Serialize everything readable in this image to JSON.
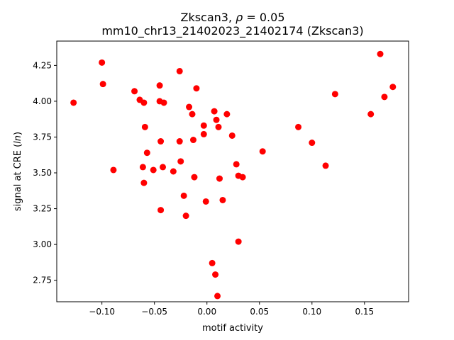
{
  "chart_data": {
    "type": "scatter",
    "title": {
      "line1_prefix": "Zkscan3, ",
      "rho_symbol": "ρ",
      "line1_suffix": " = 0.05",
      "line2": "mm10_chr13_21402023_21402174 (Zkscan3)"
    },
    "xlabel": "motif activity",
    "ylabel": {
      "prefix": "signal at CRE (",
      "italic": "ln",
      "suffix": ")"
    },
    "xlim": [
      -0.143,
      0.192
    ],
    "ylim": [
      2.6,
      4.42
    ],
    "xticks": [
      -0.1,
      -0.05,
      0.0,
      0.05,
      0.1,
      0.15
    ],
    "xtick_labels": [
      "−0.10",
      "−0.05",
      "0.00",
      "0.05",
      "0.10",
      "0.15"
    ],
    "yticks": [
      2.75,
      3.0,
      3.25,
      3.5,
      3.75,
      4.0,
      4.25
    ],
    "ytick_labels": [
      "2.75",
      "3.00",
      "3.25",
      "3.50",
      "3.75",
      "4.00",
      "4.25"
    ],
    "point_color": "#ff0000",
    "grid": false,
    "points": [
      {
        "x": -0.127,
        "y": 3.99
      },
      {
        "x": -0.1,
        "y": 4.27
      },
      {
        "x": -0.099,
        "y": 4.12
      },
      {
        "x": -0.089,
        "y": 3.52
      },
      {
        "x": -0.069,
        "y": 4.07
      },
      {
        "x": -0.064,
        "y": 4.01
      },
      {
        "x": -0.06,
        "y": 3.99
      },
      {
        "x": -0.059,
        "y": 3.82
      },
      {
        "x": -0.061,
        "y": 3.54
      },
      {
        "x": -0.06,
        "y": 3.43
      },
      {
        "x": -0.057,
        "y": 3.64
      },
      {
        "x": -0.051,
        "y": 3.52
      },
      {
        "x": -0.045,
        "y": 4.11
      },
      {
        "x": -0.045,
        "y": 4.0
      },
      {
        "x": -0.044,
        "y": 3.72
      },
      {
        "x": -0.042,
        "y": 3.54
      },
      {
        "x": -0.041,
        "y": 3.99
      },
      {
        "x": -0.044,
        "y": 3.24
      },
      {
        "x": -0.032,
        "y": 3.51
      },
      {
        "x": -0.026,
        "y": 4.21
      },
      {
        "x": -0.026,
        "y": 3.72
      },
      {
        "x": -0.025,
        "y": 3.58
      },
      {
        "x": -0.022,
        "y": 3.34
      },
      {
        "x": -0.02,
        "y": 3.2
      },
      {
        "x": -0.017,
        "y": 3.96
      },
      {
        "x": -0.014,
        "y": 3.91
      },
      {
        "x": -0.013,
        "y": 3.73
      },
      {
        "x": -0.012,
        "y": 3.47
      },
      {
        "x": -0.01,
        "y": 4.09
      },
      {
        "x": -0.003,
        "y": 3.83
      },
      {
        "x": -0.003,
        "y": 3.77
      },
      {
        "x": -0.001,
        "y": 3.3
      },
      {
        "x": 0.005,
        "y": 2.87
      },
      {
        "x": 0.007,
        "y": 3.93
      },
      {
        "x": 0.008,
        "y": 2.79
      },
      {
        "x": 0.009,
        "y": 3.87
      },
      {
        "x": 0.01,
        "y": 2.64
      },
      {
        "x": 0.011,
        "y": 3.82
      },
      {
        "x": 0.012,
        "y": 3.46
      },
      {
        "x": 0.015,
        "y": 3.31
      },
      {
        "x": 0.019,
        "y": 3.91
      },
      {
        "x": 0.024,
        "y": 3.76
      },
      {
        "x": 0.028,
        "y": 3.56
      },
      {
        "x": 0.03,
        "y": 3.48
      },
      {
        "x": 0.03,
        "y": 3.02
      },
      {
        "x": 0.034,
        "y": 3.47
      },
      {
        "x": 0.053,
        "y": 3.65
      },
      {
        "x": 0.087,
        "y": 3.82
      },
      {
        "x": 0.1,
        "y": 3.71
      },
      {
        "x": 0.113,
        "y": 3.55
      },
      {
        "x": 0.122,
        "y": 4.05
      },
      {
        "x": 0.156,
        "y": 3.91
      },
      {
        "x": 0.165,
        "y": 4.33
      },
      {
        "x": 0.169,
        "y": 4.03
      },
      {
        "x": 0.177,
        "y": 4.1
      }
    ]
  }
}
